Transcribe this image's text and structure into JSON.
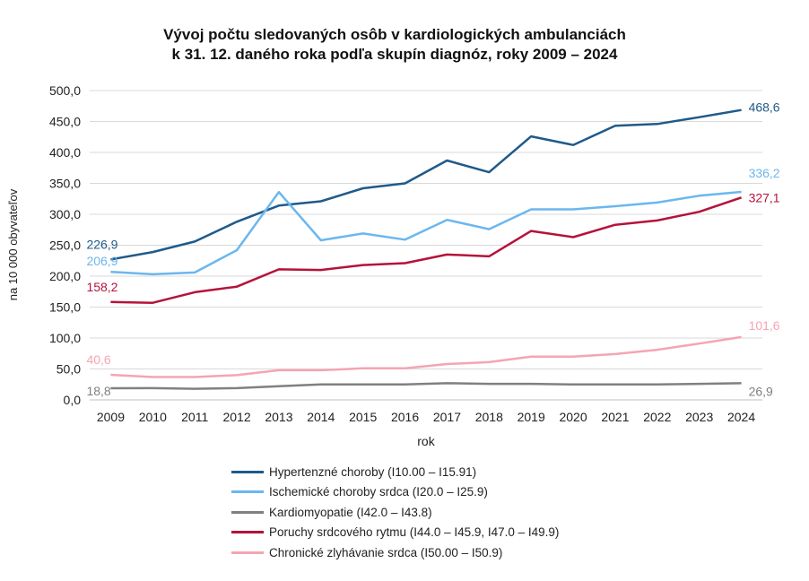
{
  "chart_data": {
    "type": "line",
    "title_lines": [
      "Vývoj počtu sledovaných osôb v kardiologických ambulanciách",
      "k 31. 12. daného roka podľa skupín diagnóz, roky 2009 – 2024"
    ],
    "xlabel": "rok",
    "ylabel": "na 10 000 obyvateľov",
    "ylim": [
      0,
      500
    ],
    "y_ticks": [
      "0,0",
      "50,0",
      "100,0",
      "150,0",
      "200,0",
      "250,0",
      "300,0",
      "350,0",
      "400,0",
      "450,0",
      "500,0"
    ],
    "categories": [
      "2009",
      "2010",
      "2011",
      "2012",
      "2013",
      "2014",
      "2015",
      "2016",
      "2017",
      "2018",
      "2019",
      "2020",
      "2021",
      "2022",
      "2023",
      "2024"
    ],
    "grid": true,
    "legend_position": "bottom",
    "series": [
      {
        "name": "Hypertenzné choroby (I10.00 – I15.91)",
        "color": "#1f5a8a",
        "values": [
          226.9,
          239,
          256,
          288,
          314,
          321,
          342,
          350,
          387,
          368,
          426,
          412,
          443,
          446,
          457,
          468.6
        ],
        "first_label": "226,9",
        "last_label": "468,6"
      },
      {
        "name": "Ischemické choroby srdca (I20.0 – I25.9)",
        "color": "#6bb7ee",
        "values": [
          206.9,
          203,
          206,
          242,
          336,
          258,
          269,
          259,
          291,
          276,
          308,
          308,
          313,
          319,
          330,
          336.2
        ],
        "first_label": "206,9",
        "last_label": "336,2"
      },
      {
        "name": "Kardiomyopatie (I42.0 – I43.8)",
        "color": "#808080",
        "values": [
          18.8,
          19,
          18,
          19,
          22,
          25,
          25,
          25,
          27,
          26,
          26,
          25,
          25,
          25,
          26,
          26.9
        ],
        "first_label": "18,8",
        "last_label": "26,9"
      },
      {
        "name": "Poruchy srdcového rytmu (I44.0 – I45.9, I47.0 – I49.9)",
        "color": "#b5123a",
        "values": [
          158.2,
          157,
          174,
          183,
          211,
          210,
          218,
          221,
          235,
          232,
          273,
          263,
          283,
          290,
          304,
          327.1
        ],
        "first_label": "158,2",
        "last_label": "327,1"
      },
      {
        "name": "Chronické zlyhávanie srdca (I50.00 – I50.9)",
        "color": "#f4a5b3",
        "values": [
          40.6,
          37,
          37,
          40,
          48,
          48,
          51,
          51,
          58,
          61,
          70,
          70,
          74,
          81,
          91,
          101.6
        ],
        "first_label": "40,6",
        "last_label": "101,6"
      }
    ]
  }
}
